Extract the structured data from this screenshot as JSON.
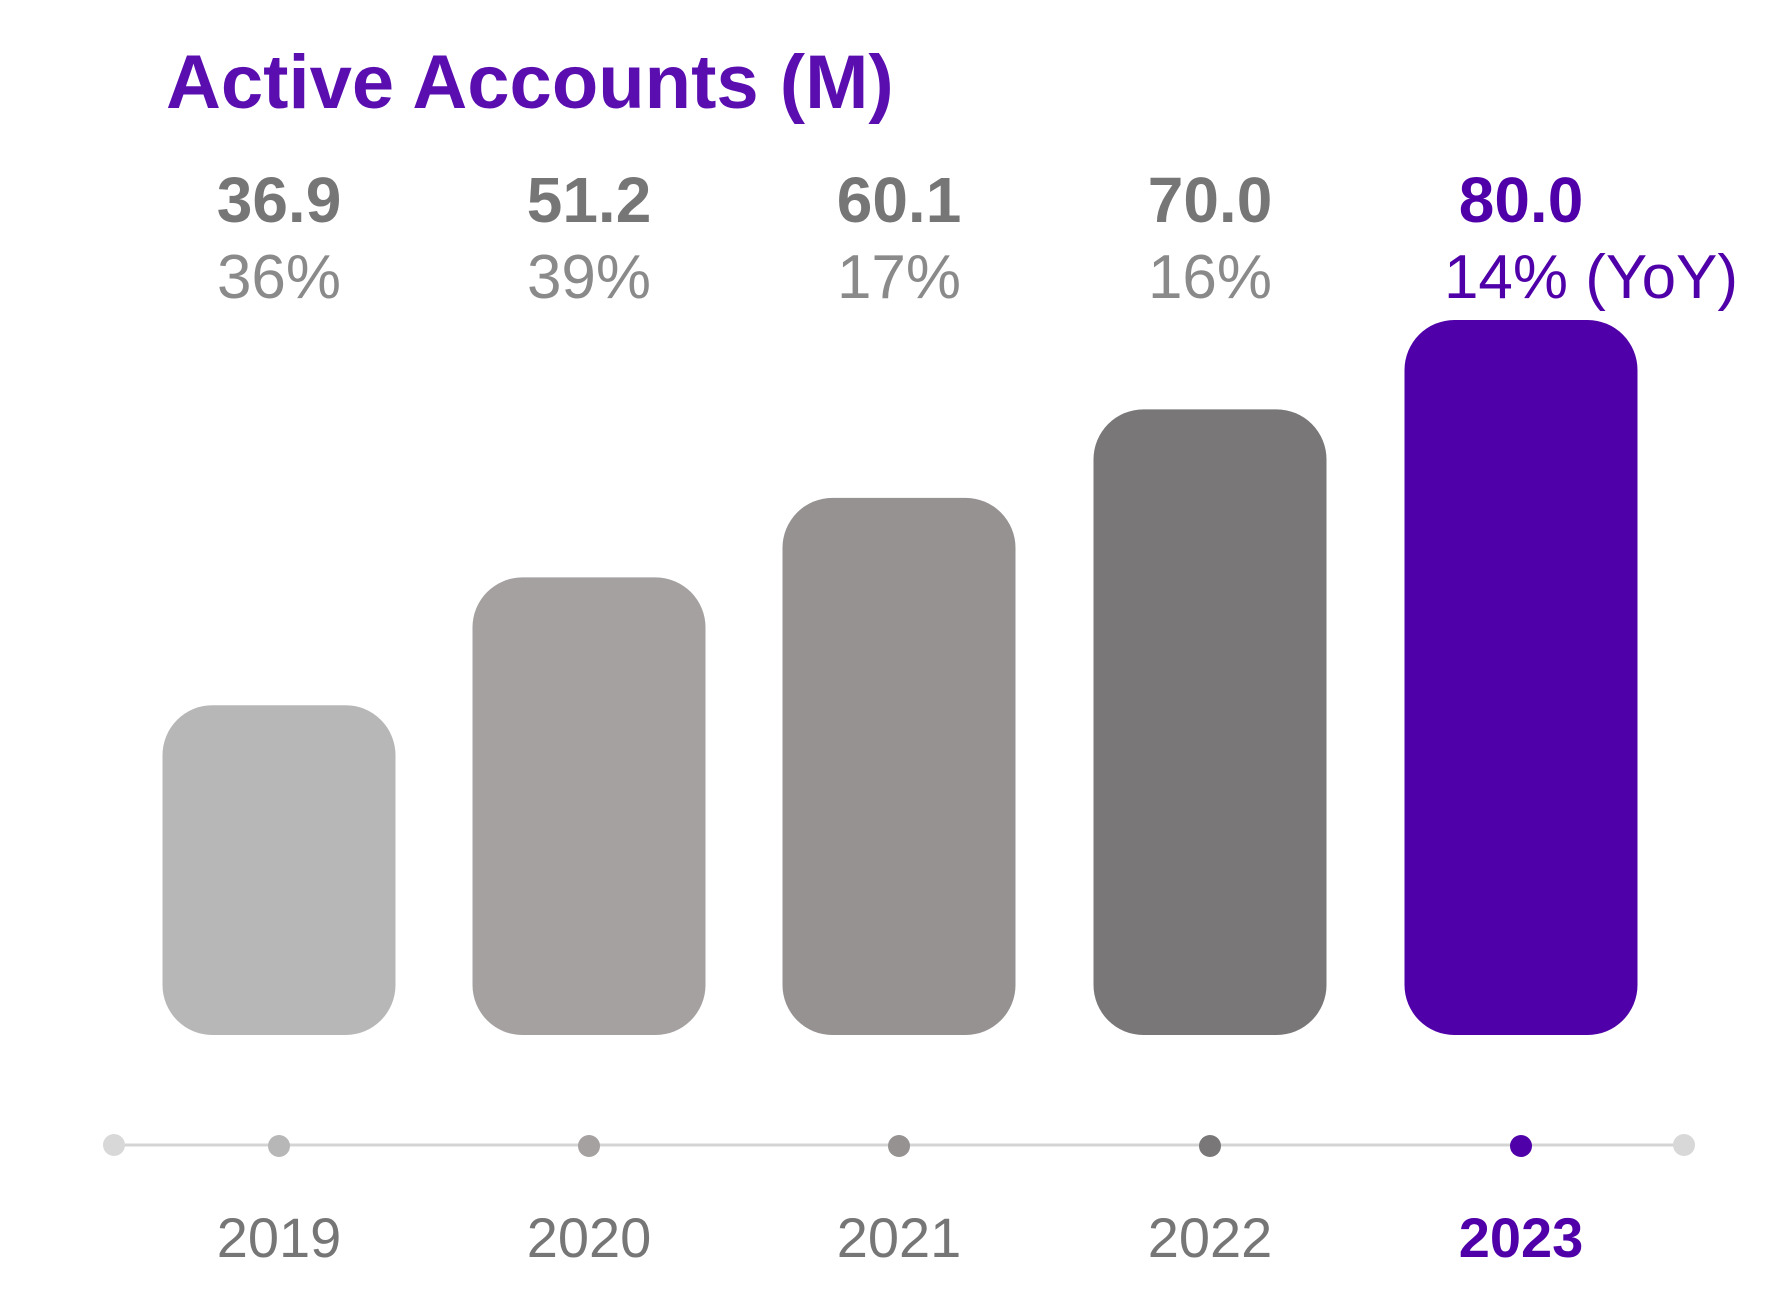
{
  "chart_data": {
    "type": "bar",
    "title": "Active Accounts (M)",
    "categories": [
      "2019",
      "2020",
      "2021",
      "2022",
      "2023"
    ],
    "values": [
      36.9,
      51.2,
      60.1,
      70.0,
      80.0
    ],
    "value_labels": [
      "36.9",
      "51.2",
      "60.1",
      "70.0",
      "80.0"
    ],
    "annotations": [
      "36%",
      "39%",
      "17%",
      "16%",
      "14% (YoY)"
    ],
    "colors": [
      "#b8b7b8",
      "#a4a1a0",
      "#959291",
      "#797778",
      "#4f00a8"
    ]
  }
}
